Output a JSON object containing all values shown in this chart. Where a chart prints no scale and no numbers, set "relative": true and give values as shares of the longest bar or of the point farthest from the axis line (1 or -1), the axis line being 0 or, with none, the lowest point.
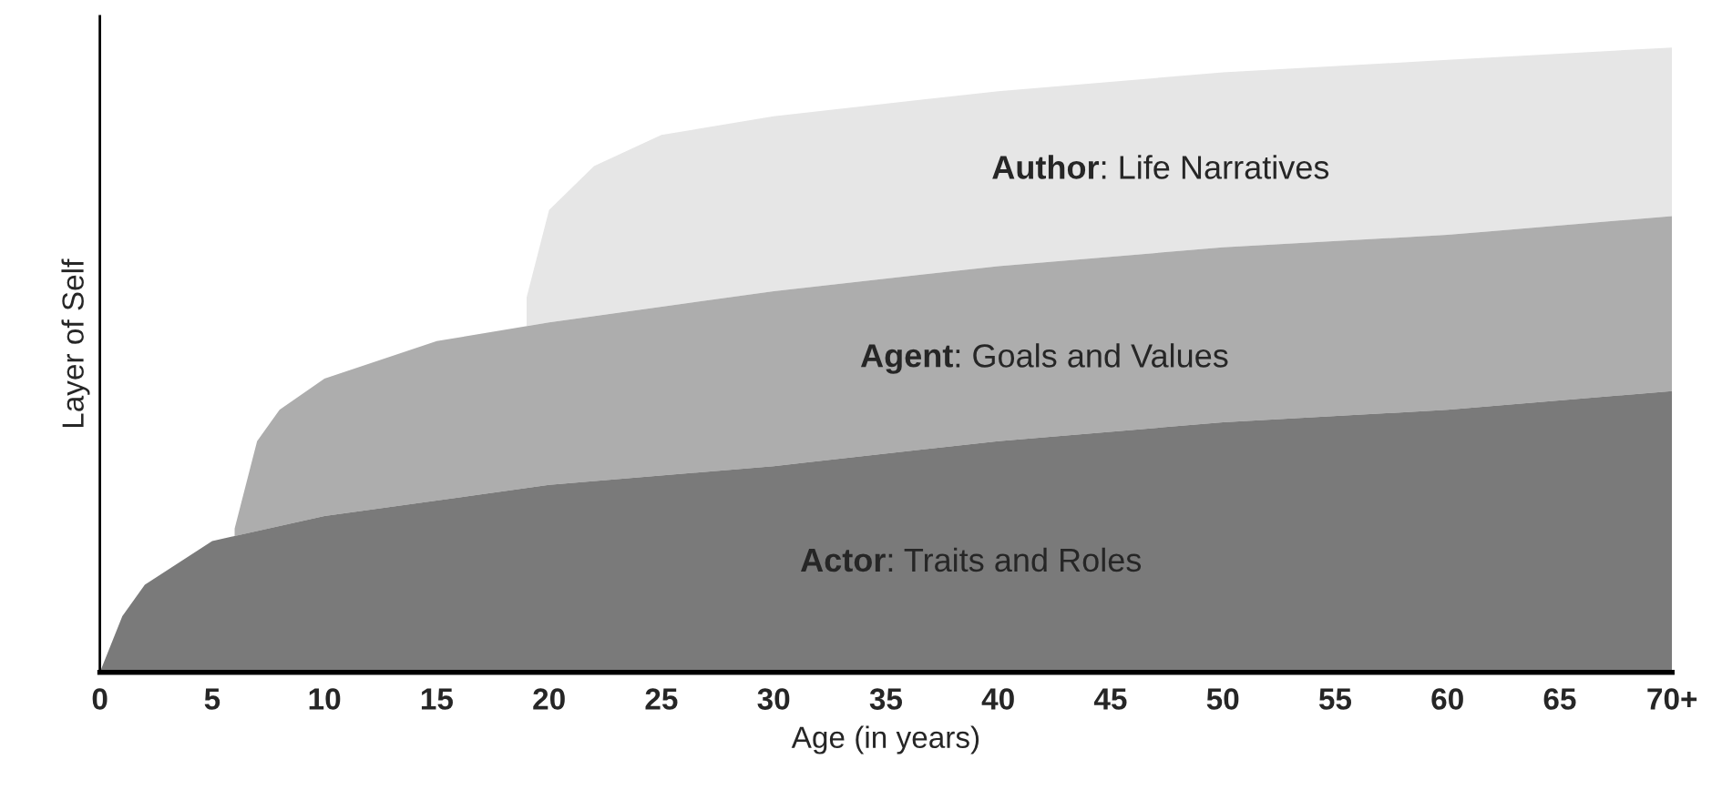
{
  "chart_data": {
    "type": "area",
    "relative": true,
    "xlabel": "Age (in years)",
    "ylabel": "Layer of Self",
    "xlim": [
      0,
      70
    ],
    "xticks": [
      0,
      5,
      10,
      15,
      20,
      25,
      30,
      35,
      40,
      45,
      50,
      55,
      60,
      65,
      {
        "value": 70,
        "label": "70+"
      }
    ],
    "series": [
      {
        "name": "Author: Life Narratives",
        "color": "#e6e6e6",
        "x": [
          19,
          20,
          22,
          25,
          30,
          40,
          50,
          60,
          70
        ],
        "values": [
          0.6,
          0.74,
          0.81,
          0.86,
          0.89,
          0.93,
          0.96,
          0.98,
          1
        ]
      },
      {
        "name": "Agent: Goals and Values",
        "color": "#adadad",
        "x": [
          6,
          7,
          8,
          10,
          15,
          20,
          30,
          40,
          50,
          60,
          70
        ],
        "values": [
          0.23,
          0.37,
          0.42,
          0.47,
          0.53,
          0.56,
          0.61,
          0.65,
          0.68,
          0.7,
          0.73
        ]
      },
      {
        "name": "Actor: Traits and Roles",
        "color": "#7a7a7a",
        "x": [
          0,
          1,
          2,
          5,
          10,
          20,
          30,
          40,
          50,
          60,
          70
        ],
        "values": [
          0,
          0.09,
          0.14,
          0.21,
          0.25,
          0.3,
          0.33,
          0.37,
          0.4,
          0.42,
          0.45
        ]
      }
    ],
    "grid": false,
    "legend": false
  }
}
